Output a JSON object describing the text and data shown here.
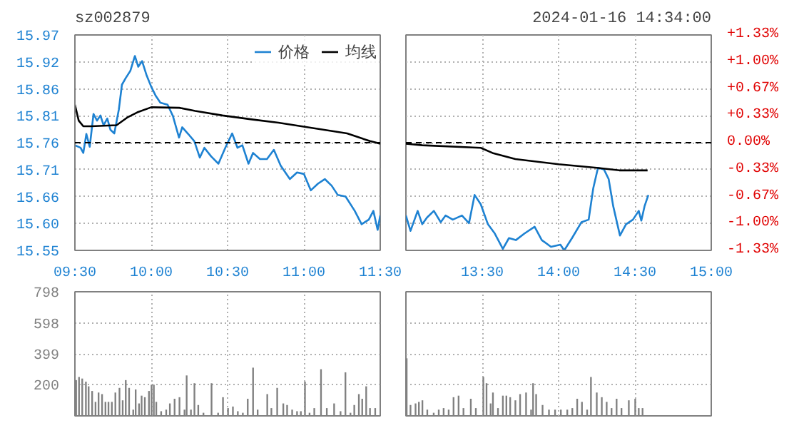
{
  "chart_data": [
    {
      "type": "line",
      "title": "sz002879",
      "legend": "top right",
      "grid": true,
      "xlim": [
        9.5,
        11.5
      ],
      "xticks": [
        {
          "value": 9.5,
          "label": "09:30"
        },
        {
          "value": 10,
          "label": "10:00"
        },
        {
          "value": 10.5,
          "label": "10:30"
        },
        {
          "value": 11,
          "label": "11:00"
        },
        {
          "value": 11.5,
          "label": "11:30"
        }
      ],
      "ylim": [
        15.55,
        15.97
      ],
      "yticks": [
        {
          "value": 15.55,
          "label": "15.55"
        },
        {
          "value": 15.6025,
          "label": "15.60"
        },
        {
          "value": 15.655,
          "label": "15.66"
        },
        {
          "value": 15.7075,
          "label": "15.71"
        },
        {
          "value": 15.76,
          "label": "15.76"
        },
        {
          "value": 15.8125,
          "label": "15.81"
        },
        {
          "value": 15.865,
          "label": "15.86"
        },
        {
          "value": 15.9175,
          "label": "15.92"
        },
        {
          "value": 15.97,
          "label": "15.97"
        }
      ],
      "ref_lines": [
        {
          "axis": "y",
          "value": 15.76,
          "color": "#000000",
          "line_style": "dashed"
        }
      ],
      "series": [
        {
          "name": "价格",
          "color": "#1e82d2",
          "x": [
            9.5,
            9.537,
            9.555,
            9.575,
            9.597,
            9.622,
            9.645,
            9.667,
            9.688,
            9.712,
            9.733,
            9.758,
            9.788,
            9.808,
            9.833,
            9.863,
            9.893,
            9.915,
            9.94,
            9.97,
            10,
            10.03,
            10.06,
            10.107,
            10.142,
            10.182,
            10.203,
            10.242,
            10.282,
            10.318,
            10.348,
            10.393,
            10.44,
            10.485,
            10.53,
            10.565,
            10.597,
            10.637,
            10.667,
            10.712,
            10.758,
            10.803,
            10.848,
            10.908,
            10.955,
            11,
            11.045,
            11.092,
            11.137,
            11.182,
            11.222,
            11.273,
            11.333,
            11.378,
            11.425,
            11.455,
            11.483,
            11.5
          ],
          "values": [
            15.755,
            15.75,
            15.74,
            15.777,
            15.752,
            15.816,
            15.803,
            15.813,
            15.794,
            15.807,
            15.785,
            15.778,
            15.825,
            15.873,
            15.886,
            15.9,
            15.929,
            15.908,
            15.919,
            15.891,
            15.869,
            15.851,
            15.838,
            15.834,
            15.812,
            15.77,
            15.79,
            15.777,
            15.763,
            15.731,
            15.75,
            15.733,
            15.719,
            15.75,
            15.778,
            15.75,
            15.755,
            15.719,
            15.74,
            15.728,
            15.728,
            15.746,
            15.715,
            15.689,
            15.702,
            15.699,
            15.667,
            15.68,
            15.689,
            15.676,
            15.658,
            15.655,
            15.627,
            15.601,
            15.61,
            15.627,
            15.59,
            15.618
          ]
        },
        {
          "name": "均线",
          "color": "#000000",
          "x": [
            9.5,
            9.525,
            9.555,
            9.607,
            9.773,
            9.848,
            9.908,
            10,
            10.183,
            10.288,
            10.467,
            10.667,
            10.833,
            11.133,
            11.283,
            11.433,
            11.5
          ],
          "values": [
            15.834,
            15.803,
            15.792,
            15.792,
            15.794,
            15.81,
            15.819,
            15.829,
            15.828,
            15.822,
            15.813,
            15.805,
            15.799,
            15.785,
            15.778,
            15.763,
            15.758
          ]
        }
      ]
    },
    {
      "type": "line",
      "annotations": [
        "2024-01-16 14:34:00"
      ],
      "grid": true,
      "tick_labels": "x",
      "xlim": [
        13,
        15
      ],
      "xticks": [
        {
          "value": 13,
          "label": null
        },
        {
          "value": 13.5,
          "label": "13:30"
        },
        {
          "value": 14,
          "label": "14:00"
        },
        {
          "value": 14.5,
          "label": "14:30"
        },
        {
          "value": 15,
          "label": "15:00"
        }
      ],
      "ylim": [
        15.55,
        15.97
      ],
      "yticks": [
        15.55,
        15.6025,
        15.655,
        15.7075,
        15.76,
        15.8125,
        15.865,
        15.9175,
        15.97
      ],
      "y2lim": [
        -1.33,
        1.33
      ],
      "y2ticks": [
        {
          "value": -1.33,
          "label": "-1.33%"
        },
        {
          "value": -0.9975,
          "label": "-1.00%"
        },
        {
          "value": -0.665,
          "label": "-0.67%"
        },
        {
          "value": -0.3325,
          "label": "-0.33%"
        },
        {
          "value": 0,
          "label": "0.00%"
        },
        {
          "value": 0.3325,
          "label": "+0.33%"
        },
        {
          "value": 0.665,
          "label": "+0.67%"
        },
        {
          "value": 0.9975,
          "label": "+1.00%"
        },
        {
          "value": 1.33,
          "label": "+1.33%"
        }
      ],
      "ref_lines": [
        {
          "axis": "y",
          "value": 15.76,
          "color": "#000000",
          "line_style": "dashed"
        }
      ],
      "series": [
        {
          "color": "#1e82d2",
          "x": [
            13,
            13.03,
            13.077,
            13.107,
            13.138,
            13.183,
            13.228,
            13.26,
            13.307,
            13.367,
            13.413,
            13.45,
            13.49,
            13.537,
            13.582,
            13.635,
            13.675,
            13.72,
            13.777,
            13.843,
            13.89,
            13.95,
            14.012,
            14.037,
            14.088,
            14.15,
            14.197,
            14.227,
            14.258,
            14.297,
            14.328,
            14.358,
            14.402,
            14.442,
            14.487,
            14.525,
            14.542,
            14.563,
            14.588
          ],
          "values": [
            15.618,
            15.588,
            15.627,
            15.601,
            15.614,
            15.627,
            15.605,
            15.618,
            15.61,
            15.618,
            15.603,
            15.658,
            15.64,
            15.601,
            15.583,
            15.553,
            15.574,
            15.57,
            15.583,
            15.596,
            15.57,
            15.557,
            15.561,
            15.55,
            15.574,
            15.605,
            15.61,
            15.671,
            15.711,
            15.708,
            15.689,
            15.636,
            15.579,
            15.601,
            15.61,
            15.627,
            15.608,
            15.636,
            15.658
          ]
        },
        {
          "color": "#000000",
          "x": [
            13,
            13.107,
            13.49,
            13.567,
            13.717,
            14,
            14.25,
            14.397,
            14.583
          ],
          "values": [
            15.758,
            15.755,
            15.75,
            15.74,
            15.728,
            15.718,
            15.711,
            15.706,
            15.706
          ]
        }
      ]
    },
    {
      "type": "bar",
      "grid": true,
      "tick_labels": "y",
      "xlim": [
        9.5,
        11.5
      ],
      "xticks": [
        9.5,
        10,
        10.5,
        11,
        11.5
      ],
      "ylim": [
        0,
        798
      ],
      "yticks": [
        200,
        399,
        598,
        798
      ],
      "x": [
        9.508,
        9.527,
        9.548,
        9.572,
        9.59,
        9.613,
        9.635,
        9.655,
        9.678,
        9.7,
        9.72,
        9.742,
        9.765,
        9.792,
        9.813,
        9.833,
        9.855,
        9.882,
        9.898,
        9.92,
        9.937,
        9.958,
        9.985,
        10.002,
        10.017,
        10.033,
        10.065,
        10.098,
        10.122,
        10.153,
        10.185,
        10.218,
        10.232,
        10.26,
        10.283,
        10.308,
        10.342,
        10.395,
        10.438,
        10.47,
        10.503,
        10.535,
        10.567,
        10.6,
        10.632,
        10.667,
        10.697,
        10.76,
        10.787,
        10.825,
        10.865,
        10.89,
        10.923,
        10.955,
        10.98,
        11.007,
        11.037,
        11.068,
        11.112,
        11.15,
        11.198,
        11.24,
        11.272,
        11.305,
        11.33,
        11.36,
        11.382,
        11.408,
        11.433,
        11.467
      ],
      "series": [
        {
          "color": "#808080",
          "values": [
            230,
            250,
            240,
            220,
            190,
            160,
            90,
            150,
            140,
            90,
            90,
            90,
            150,
            180,
            100,
            230,
            180,
            40,
            170,
            80,
            130,
            120,
            160,
            200,
            200,
            90,
            30,
            40,
            80,
            110,
            120,
            40,
            260,
            40,
            210,
            70,
            20,
            210,
            20,
            120,
            50,
            60,
            30,
            20,
            110,
            310,
            40,
            140,
            50,
            180,
            80,
            70,
            40,
            30,
            30,
            220,
            20,
            50,
            300,
            50,
            80,
            30,
            280,
            20,
            70,
            140,
            110,
            190,
            50,
            50
          ]
        }
      ]
    },
    {
      "type": "bar",
      "grid": true,
      "tick_labels": false,
      "xlim": [
        13,
        15
      ],
      "xticks": [
        13,
        13.5,
        14,
        14.5,
        15
      ],
      "ylim": [
        0,
        798
      ],
      "yticks": [
        200,
        399,
        598,
        798
      ],
      "x": [
        13.005,
        13.03,
        13.063,
        13.085,
        13.108,
        13.14,
        13.182,
        13.215,
        13.247,
        13.28,
        13.312,
        13.345,
        13.377,
        13.425,
        13.458,
        13.507,
        13.528,
        13.555,
        13.57,
        13.603,
        13.635,
        13.658,
        13.683,
        13.717,
        13.748,
        13.787,
        13.82,
        13.833,
        13.853,
        13.895,
        13.937,
        13.977,
        14.015,
        14.057,
        14.09,
        14.122,
        14.153,
        14.187,
        14.212,
        14.25,
        14.283,
        14.315,
        14.347,
        14.38,
        14.412,
        14.46,
        14.502,
        14.525,
        14.55
      ],
      "series": [
        {
          "color": "#808080",
          "values": [
            370,
            70,
            80,
            90,
            100,
            40,
            20,
            40,
            50,
            40,
            120,
            130,
            50,
            110,
            50,
            250,
            210,
            80,
            150,
            50,
            130,
            130,
            120,
            100,
            140,
            150,
            40,
            210,
            140,
            70,
            40,
            40,
            40,
            40,
            50,
            110,
            90,
            40,
            250,
            150,
            120,
            90,
            50,
            110,
            50,
            100,
            110,
            50,
            50
          ]
        }
      ]
    }
  ]
}
